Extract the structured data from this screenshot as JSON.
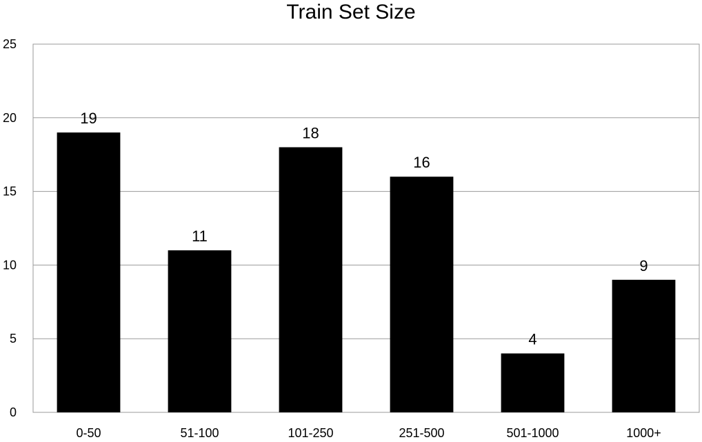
{
  "chart_data": {
    "type": "bar",
    "title": "Train Set Size",
    "xlabel": "",
    "ylabel": "",
    "categories": [
      "0-50",
      "51-100",
      "101-250",
      "251-500",
      "501-1000",
      "1000+"
    ],
    "values": [
      19,
      11,
      18,
      16,
      4,
      9
    ],
    "data_labels": [
      "19",
      "11",
      "18",
      "16",
      "4",
      "9"
    ],
    "ylim": [
      0,
      25
    ],
    "yticks": [
      0,
      5,
      10,
      15,
      20,
      25
    ],
    "ytick_labels": [
      "0",
      "5",
      "10",
      "15",
      "20",
      "25"
    ],
    "grid": true,
    "legend": "none",
    "bar_color": "#000000",
    "grid_color": "#9a9a9a"
  }
}
